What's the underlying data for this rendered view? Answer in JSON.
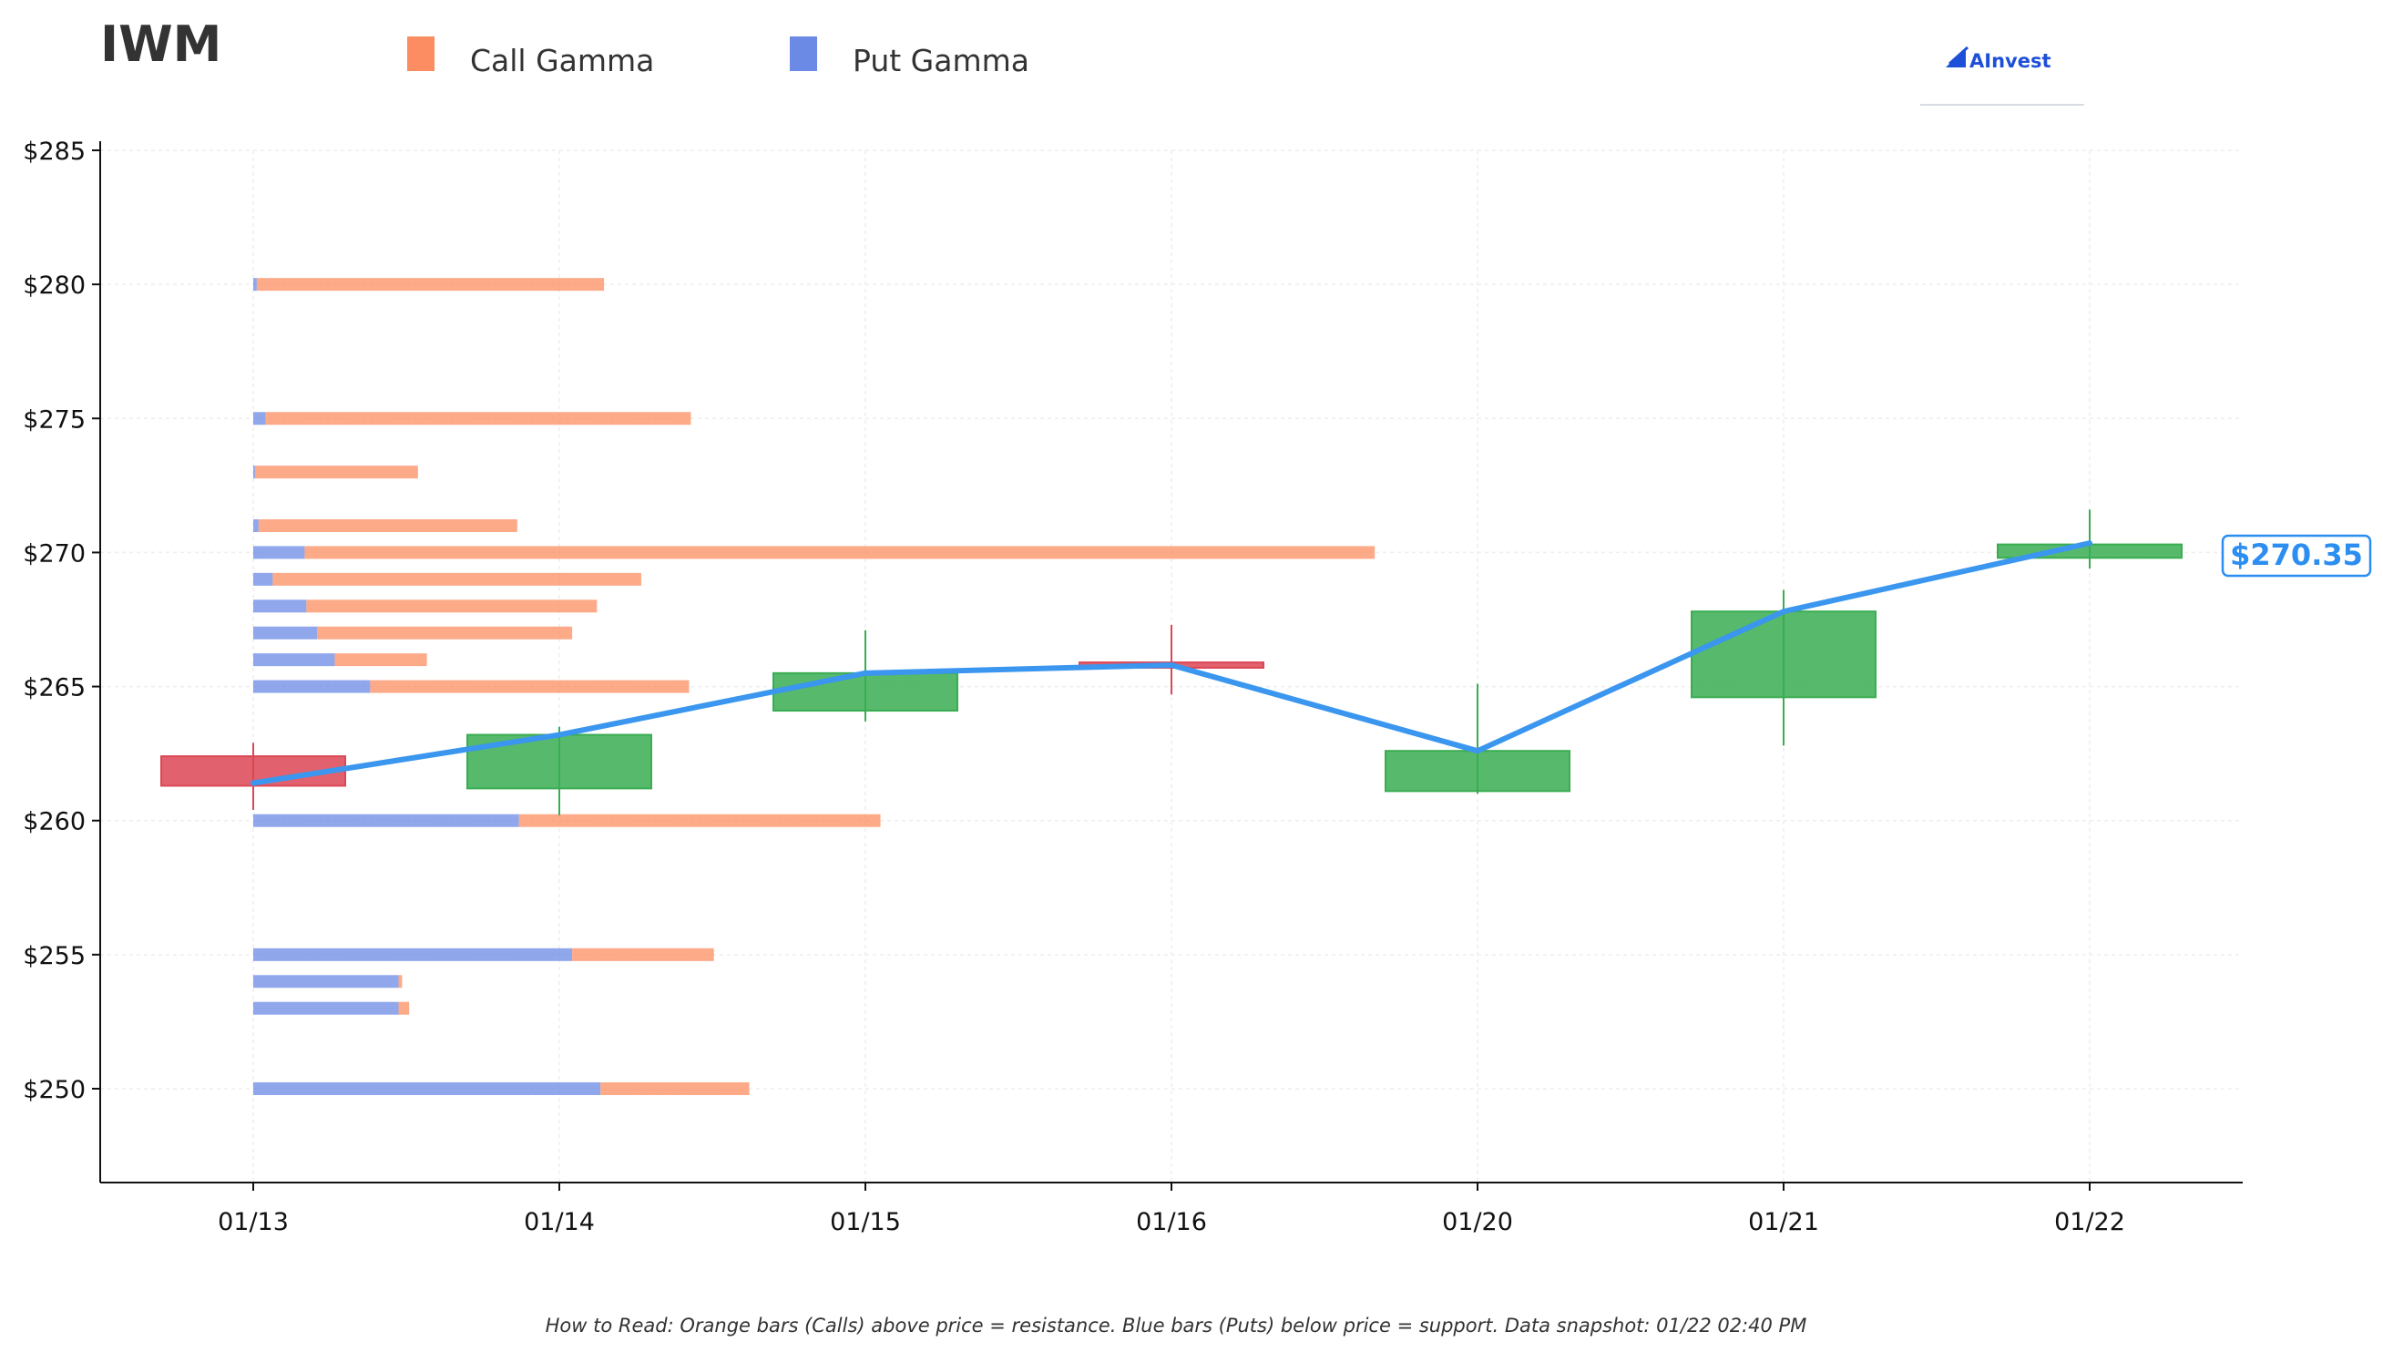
{
  "header": {
    "ticker": "IWM",
    "brand": "AInvest"
  },
  "footnote": "How to Read: Orange bars (Calls) above price = resistance. Blue bars (Puts) below price = support. Data snapshot: 01/22 02:40 PM",
  "colors": {
    "call": "#fc8d62",
    "put": "#6b8ae6",
    "up": "#3aad52",
    "down": "#dc4755",
    "price_line": "#3a96ee",
    "price_label": "#2b8ef0"
  },
  "icons": {
    "brand_logo": "ainvest-logo-icon"
  },
  "chart_data": {
    "type": "bar",
    "title": "IWM",
    "ylim": [
      246.5,
      285
    ],
    "grid": true,
    "legend_position": "top",
    "legend": [
      {
        "name": "Call Gamma",
        "color": "#fc8d62"
      },
      {
        "name": "Put Gamma",
        "color": "#6b8ae6"
      }
    ],
    "x_categories": [
      "01/13",
      "01/14",
      "01/15",
      "01/16",
      "01/20",
      "01/21",
      "01/22"
    ],
    "y_ticks": [
      250,
      255,
      260,
      265,
      270,
      275,
      280,
      285
    ],
    "y_tick_labels": [
      "$250",
      "$255",
      "$260",
      "$265",
      "$270",
      "$275",
      "$280",
      "$285"
    ],
    "candles": [
      {
        "date": "01/13",
        "open": 262.4,
        "close": 261.3,
        "high": 262.9,
        "low": 260.4
      },
      {
        "date": "01/14",
        "open": 261.2,
        "close": 263.2,
        "high": 263.5,
        "low": 260.2
      },
      {
        "date": "01/15",
        "open": 264.1,
        "close": 265.5,
        "high": 267.1,
        "low": 263.7
      },
      {
        "date": "01/16",
        "open": 265.9,
        "close": 265.7,
        "high": 267.3,
        "low": 264.7
      },
      {
        "date": "01/20",
        "open": 261.1,
        "close": 262.6,
        "high": 265.1,
        "low": 261.0
      },
      {
        "date": "01/21",
        "open": 264.6,
        "close": 267.8,
        "high": 268.6,
        "low": 262.8
      },
      {
        "date": "01/22",
        "open": 269.8,
        "close": 270.3,
        "high": 271.6,
        "low": 269.4
      }
    ],
    "price_line": {
      "x": [
        "01/13",
        "01/14",
        "01/15",
        "01/16",
        "01/20",
        "01/21",
        "01/22"
      ],
      "y": [
        261.4,
        263.2,
        265.5,
        265.8,
        262.6,
        267.8,
        270.35
      ]
    },
    "current_price": 270.35,
    "current_price_label": "$270.35",
    "gamma_bars": {
      "strikes": [
        280,
        275,
        273,
        271,
        270,
        269,
        268,
        267,
        266,
        265,
        260,
        255,
        254,
        253,
        250
      ],
      "put_gamma": [
        0.1,
        0.35,
        0.05,
        0.15,
        1.45,
        0.55,
        1.5,
        1.8,
        2.3,
        3.3,
        7.5,
        9.0,
        4.1,
        4.1,
        9.8
      ],
      "call_gamma": [
        9.8,
        12.0,
        4.6,
        7.3,
        30.2,
        10.4,
        8.2,
        7.2,
        2.6,
        9.0,
        10.2,
        4.0,
        0.1,
        0.3,
        4.2
      ]
    }
  }
}
